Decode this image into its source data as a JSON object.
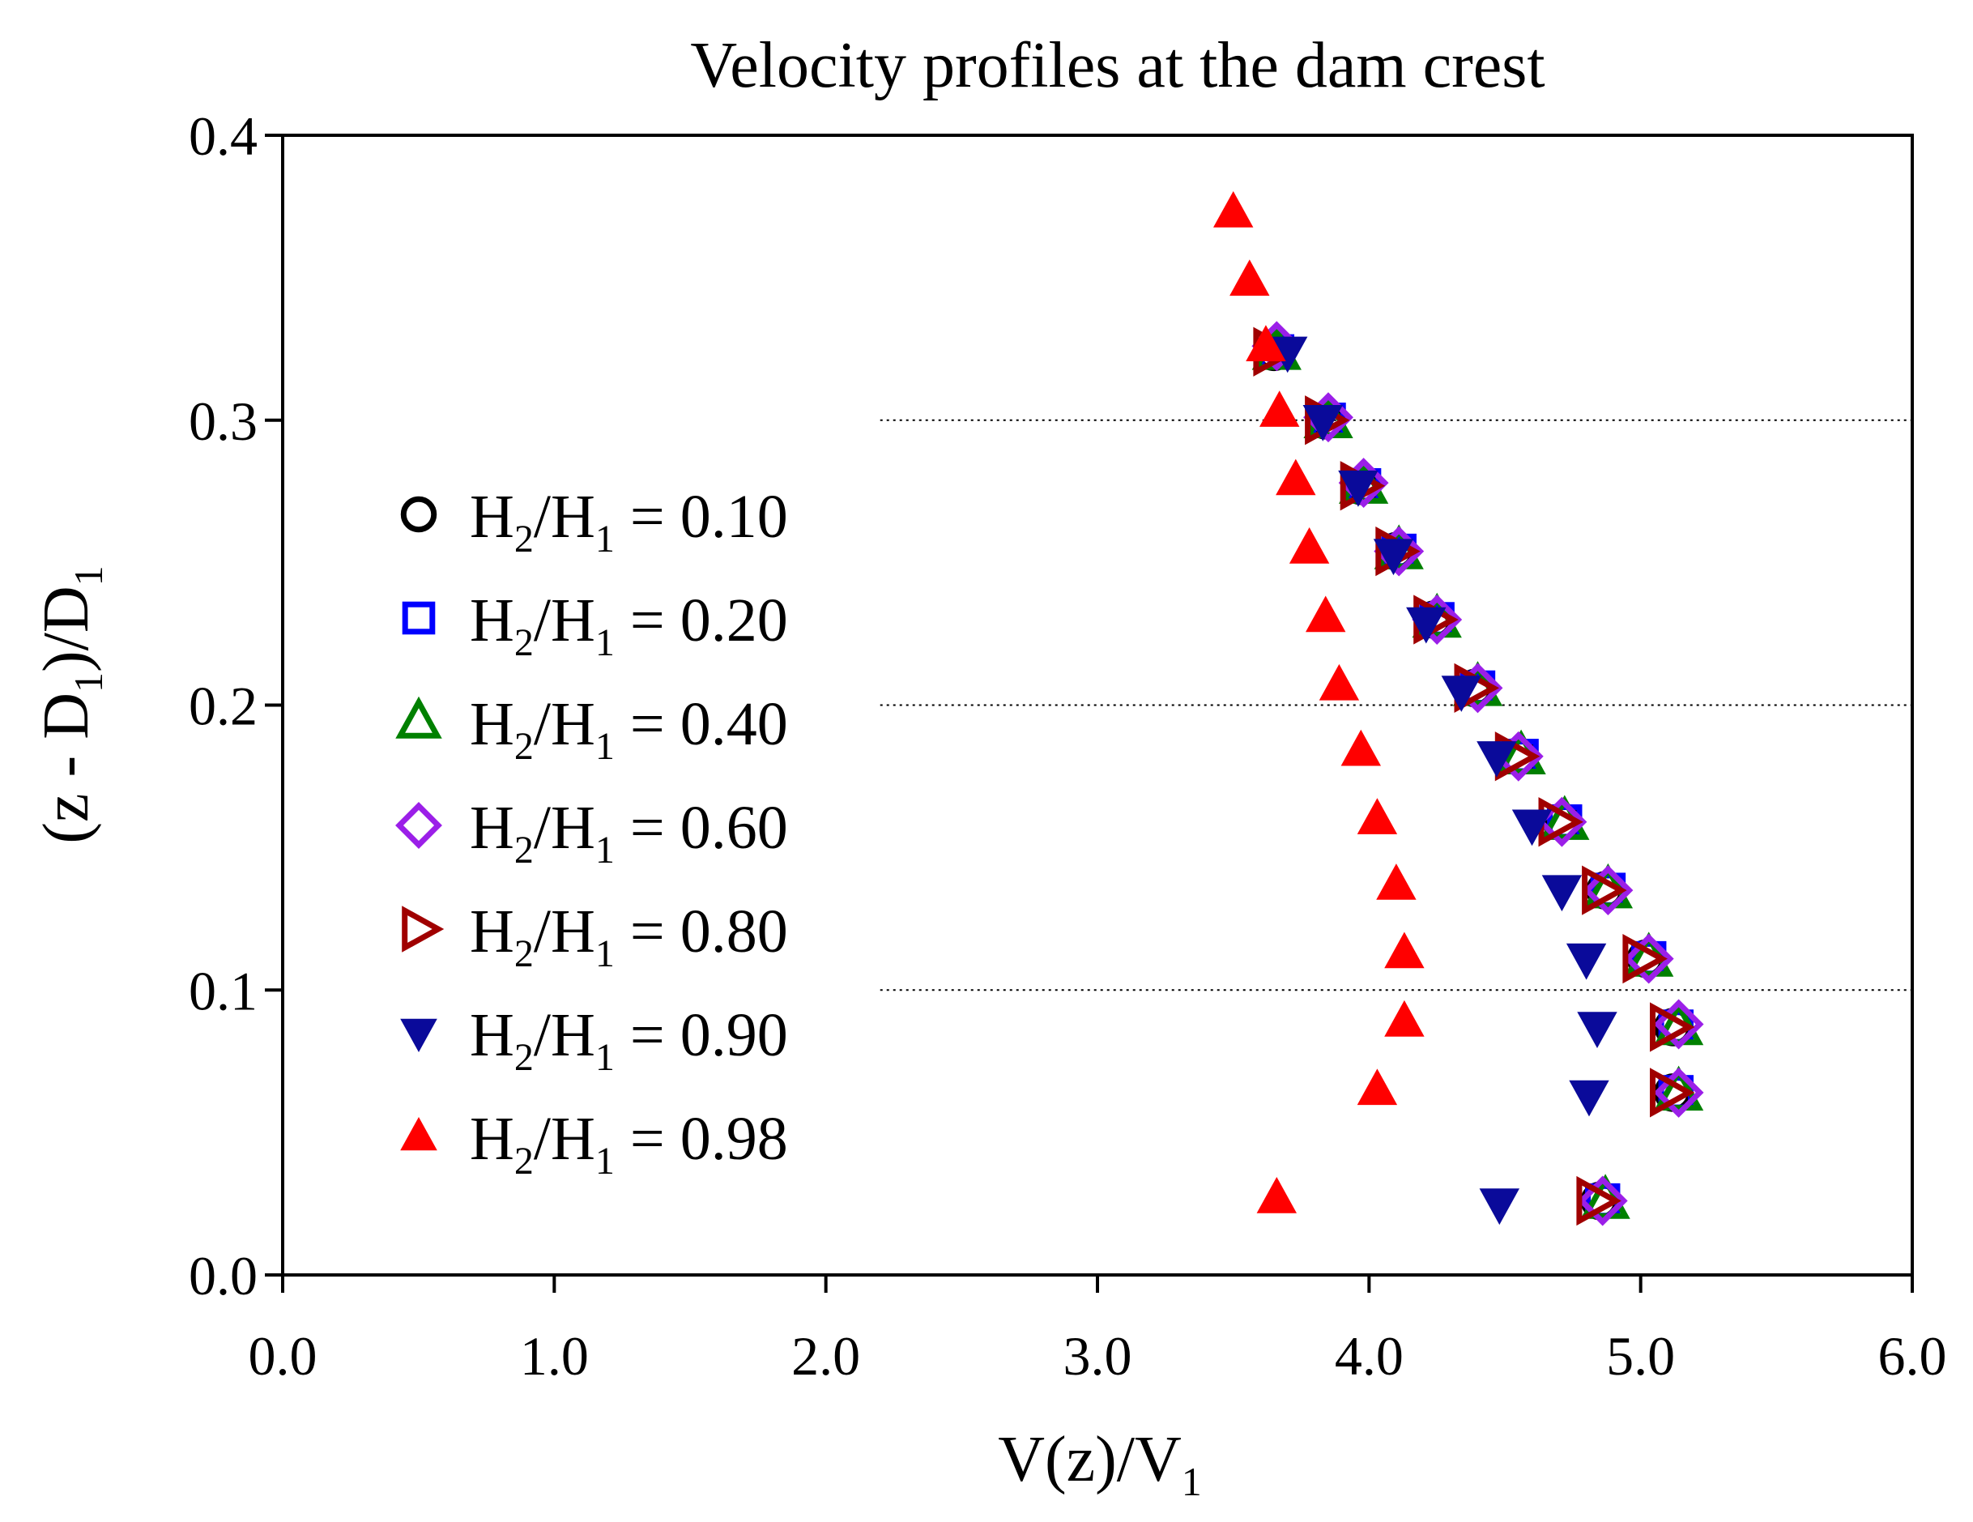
{
  "chart_data": {
    "type": "scatter",
    "title": "Velocity profiles at the dam crest",
    "xlabel": {
      "main": "V(z)/V",
      "sub": "1"
    },
    "ylabel": {
      "parts": [
        "(z - D",
        "1",
        ")/D",
        "1"
      ]
    },
    "xlim": [
      0,
      6
    ],
    "ylim": [
      0,
      0.4
    ],
    "xticks": [
      "0.0",
      "1.0",
      "2.0",
      "3.0",
      "4.0",
      "5.0",
      "6.0"
    ],
    "xtick_values": [
      0,
      1,
      2,
      3,
      4,
      5,
      6
    ],
    "yticks": [
      "0.0",
      "0.1",
      "0.2",
      "0.3",
      "0.4"
    ],
    "ytick_values": [
      0,
      0.1,
      0.2,
      0.3,
      0.4
    ],
    "reference_lines": {
      "y": [
        0.1,
        0.2,
        0.3
      ],
      "x_from": 2.2,
      "x_to": 6.0,
      "style": "dotted"
    },
    "legend_position": "left-center",
    "series": [
      {
        "name": "H2/H1 = 0.10",
        "ratio": "0.10",
        "marker": "circle",
        "color": "#000000",
        "filled": false,
        "x": [
          3.65,
          3.84,
          3.97,
          4.1,
          4.24,
          4.39,
          4.55,
          4.71,
          4.87,
          5.02,
          5.12,
          5.12,
          4.85
        ],
        "y": [
          0.324,
          0.3,
          0.277,
          0.254,
          0.23,
          0.206,
          0.182,
          0.159,
          0.135,
          0.111,
          0.087,
          0.064,
          0.026
        ]
      },
      {
        "name": "H2/H1 = 0.20",
        "ratio": "0.20",
        "marker": "square",
        "color": "#0000ff",
        "filled": false,
        "x": [
          3.66,
          3.85,
          3.98,
          4.11,
          4.25,
          4.4,
          4.56,
          4.72,
          4.88,
          5.03,
          5.13,
          5.13,
          4.86
        ],
        "y": [
          0.324,
          0.3,
          0.277,
          0.254,
          0.23,
          0.206,
          0.182,
          0.159,
          0.135,
          0.111,
          0.087,
          0.064,
          0.026
        ]
      },
      {
        "name": "H2/H1 = 0.40",
        "ratio": "0.40",
        "marker": "triangle-up",
        "color": "#008000",
        "filled": false,
        "x": [
          3.66,
          3.85,
          3.98,
          4.11,
          4.25,
          4.4,
          4.56,
          4.72,
          4.88,
          5.03,
          5.14,
          5.14,
          4.87
        ],
        "y": [
          0.324,
          0.3,
          0.277,
          0.254,
          0.23,
          0.206,
          0.182,
          0.159,
          0.135,
          0.111,
          0.087,
          0.064,
          0.026
        ]
      },
      {
        "name": "H2/H1 = 0.60",
        "ratio": "0.60",
        "marker": "diamond",
        "color": "#9b1fe8",
        "filled": false,
        "x": [
          3.66,
          3.85,
          3.98,
          4.11,
          4.25,
          4.4,
          4.55,
          4.71,
          4.88,
          5.03,
          5.14,
          5.14,
          4.86
        ],
        "y": [
          0.326,
          0.301,
          0.278,
          0.254,
          0.23,
          0.206,
          0.182,
          0.159,
          0.135,
          0.111,
          0.088,
          0.064,
          0.026
        ]
      },
      {
        "name": "H2/H1 = 0.80",
        "ratio": "0.80",
        "marker": "triangle-right",
        "color": "#a00000",
        "filled": false,
        "x": [
          3.64,
          3.83,
          3.96,
          4.09,
          4.23,
          4.38,
          4.53,
          4.69,
          4.85,
          5.0,
          5.1,
          5.1,
          4.83
        ],
        "y": [
          0.324,
          0.3,
          0.277,
          0.254,
          0.23,
          0.206,
          0.182,
          0.159,
          0.135,
          0.111,
          0.087,
          0.064,
          0.026
        ]
      },
      {
        "name": "H2/H1 = 0.90",
        "ratio": "0.90",
        "marker": "triangle-down",
        "color": "#0a0a9a",
        "filled": true,
        "x": [
          3.7,
          3.83,
          3.96,
          4.09,
          4.21,
          4.34,
          4.47,
          4.6,
          4.71,
          4.8,
          4.84,
          4.81,
          4.48
        ],
        "y": [
          0.324,
          0.3,
          0.277,
          0.253,
          0.229,
          0.205,
          0.182,
          0.158,
          0.135,
          0.111,
          0.087,
          0.063,
          0.025
        ]
      },
      {
        "name": "H2/H1 = 0.98",
        "ratio": "0.98",
        "marker": "triangle-up",
        "color": "#ff0000",
        "filled": true,
        "x": [
          3.5,
          3.56,
          3.62,
          3.67,
          3.73,
          3.78,
          3.84,
          3.89,
          3.97,
          4.03,
          4.1,
          4.13,
          4.13,
          4.03,
          3.66
        ],
        "y": [
          0.373,
          0.349,
          0.326,
          0.303,
          0.279,
          0.255,
          0.231,
          0.207,
          0.184,
          0.16,
          0.137,
          0.113,
          0.089,
          0.065,
          0.027
        ]
      }
    ]
  }
}
